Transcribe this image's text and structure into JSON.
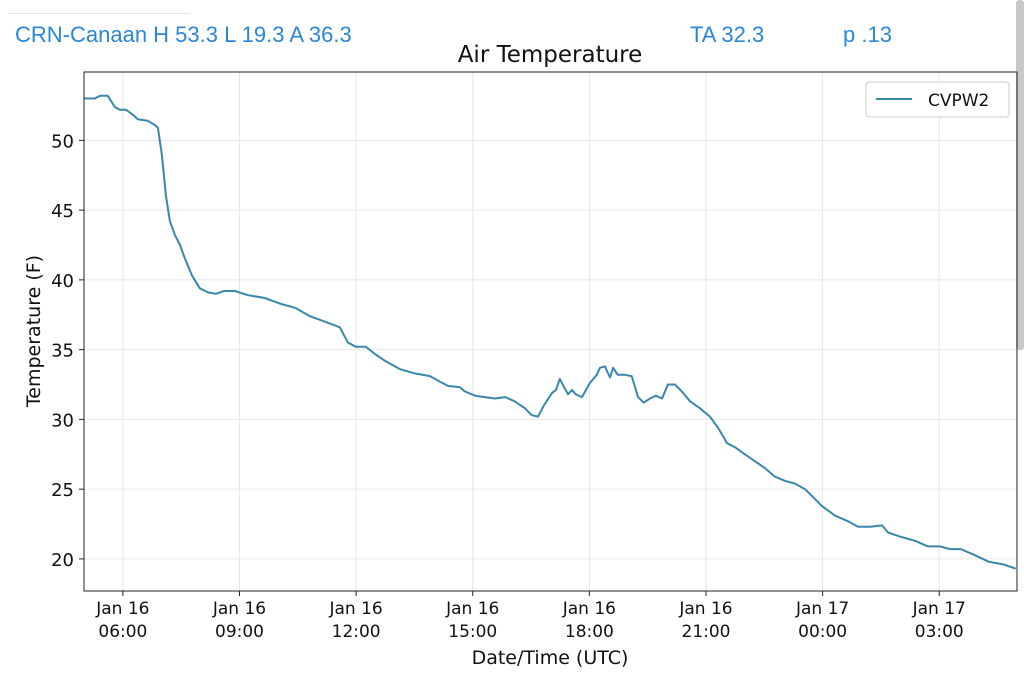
{
  "header": {
    "station": "CRN-Canaan H 53.3 L 19.3 A 36.3",
    "ta": "TA 32.3",
    "p": "p .13"
  },
  "colors": {
    "line": "#3a87ad",
    "header": "#2a86d8"
  },
  "chart_data": {
    "type": "line",
    "title": "Air Temperature",
    "xlabel": "Date/Time (UTC)",
    "ylabel": "Temperature (F)",
    "x_units": "hours since Jan 16 00:00 UTC",
    "xlim": [
      5.0,
      29.0
    ],
    "ylim": [
      17.7,
      54.9
    ],
    "grid": true,
    "legend_position": "top-right",
    "xticks": [
      {
        "value": 6,
        "line1": "Jan 16",
        "line2": "06:00"
      },
      {
        "value": 9,
        "line1": "Jan 16",
        "line2": "09:00"
      },
      {
        "value": 12,
        "line1": "Jan 16",
        "line2": "12:00"
      },
      {
        "value": 15,
        "line1": "Jan 16",
        "line2": "15:00"
      },
      {
        "value": 18,
        "line1": "Jan 16",
        "line2": "18:00"
      },
      {
        "value": 21,
        "line1": "Jan 16",
        "line2": "21:00"
      },
      {
        "value": 24,
        "line1": "Jan 17",
        "line2": "00:00"
      },
      {
        "value": 27,
        "line1": "Jan 17",
        "line2": "03:00"
      }
    ],
    "yticks": [
      20,
      25,
      30,
      35,
      40,
      45,
      50
    ],
    "series": [
      {
        "name": "CVPW2",
        "x": [
          5.0,
          5.28,
          5.41,
          5.61,
          5.79,
          5.92,
          6.08,
          6.23,
          6.39,
          6.64,
          6.82,
          6.9,
          7.0,
          7.11,
          7.21,
          7.34,
          7.47,
          7.6,
          7.78,
          7.98,
          8.19,
          8.39,
          8.6,
          8.88,
          9.22,
          9.65,
          10.04,
          10.43,
          10.81,
          11.2,
          11.58,
          11.79,
          12.0,
          12.25,
          12.48,
          12.74,
          13.13,
          13.51,
          13.9,
          14.16,
          14.36,
          14.67,
          14.8,
          15.06,
          15.31,
          15.57,
          15.83,
          16.08,
          16.34,
          16.52,
          16.68,
          16.83,
          17.04,
          17.14,
          17.24,
          17.37,
          17.45,
          17.55,
          17.65,
          17.81,
          18.01,
          18.19,
          18.27,
          18.4,
          18.53,
          18.61,
          18.73,
          18.91,
          19.09,
          19.25,
          19.4,
          19.56,
          19.71,
          19.87,
          20.02,
          20.2,
          20.38,
          20.59,
          20.84,
          21.1,
          21.31,
          21.54,
          21.75,
          22.0,
          22.26,
          22.52,
          22.77,
          23.03,
          23.29,
          23.55,
          23.8,
          23.98,
          24.32,
          24.65,
          24.91,
          25.22,
          25.53,
          25.68,
          25.99,
          26.38,
          26.71,
          27.02,
          27.28,
          27.55,
          27.89,
          28.27,
          28.66,
          28.97
        ],
        "y": [
          53.0,
          53.0,
          53.2,
          53.2,
          52.4,
          52.2,
          52.2,
          51.9,
          51.5,
          51.4,
          51.1,
          50.9,
          49.0,
          46.0,
          44.2,
          43.2,
          42.5,
          41.5,
          40.3,
          39.4,
          39.1,
          39.0,
          39.2,
          39.2,
          38.9,
          38.7,
          38.3,
          38.0,
          37.4,
          37.0,
          36.6,
          35.5,
          35.2,
          35.2,
          34.7,
          34.2,
          33.6,
          33.3,
          33.1,
          32.7,
          32.4,
          32.3,
          32.0,
          31.7,
          31.6,
          31.5,
          31.6,
          31.3,
          30.8,
          30.3,
          30.2,
          31.0,
          31.9,
          32.1,
          32.9,
          32.2,
          31.8,
          32.1,
          31.8,
          31.6,
          32.6,
          33.2,
          33.7,
          33.8,
          33.0,
          33.7,
          33.2,
          33.2,
          33.1,
          31.6,
          31.2,
          31.5,
          31.7,
          31.5,
          32.5,
          32.5,
          32.0,
          31.3,
          30.8,
          30.2,
          29.4,
          28.3,
          28.0,
          27.5,
          27.0,
          26.5,
          25.9,
          25.6,
          25.4,
          25.0,
          24.3,
          23.8,
          23.1,
          22.7,
          22.3,
          22.3,
          22.4,
          21.9,
          21.6,
          21.3,
          20.9,
          20.9,
          20.7,
          20.7,
          20.3,
          19.8,
          19.6,
          19.3
        ]
      }
    ]
  }
}
